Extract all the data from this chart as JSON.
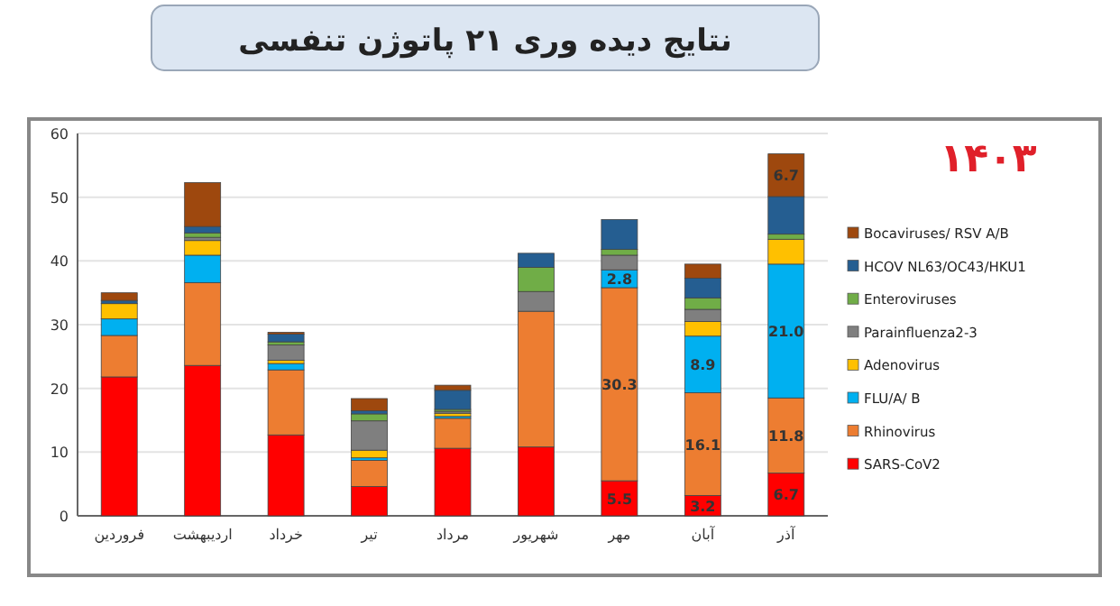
{
  "chart_data": {
    "type": "bar",
    "stacked": true,
    "title": "نتایج دیده وری ۲۱ پاتوژن تنفسی",
    "subtitle": "۱۴۰۳",
    "categories": [
      "فروردین",
      "اردیبهشت",
      "خرداد",
      "تیر",
      "مرداد",
      "شهریور",
      "مهر",
      "آبان",
      "آذر"
    ],
    "series": [
      {
        "name": "SARS-CoV2",
        "color": "#ff0000",
        "values": [
          21.8,
          23.6,
          12.7,
          4.6,
          10.6,
          10.8,
          5.5,
          3.2,
          6.7
        ],
        "value_labels": [
          null,
          null,
          null,
          null,
          null,
          null,
          "5.5",
          "3.2",
          "6.7"
        ]
      },
      {
        "name": "Rhinovirus",
        "color": "#ed7d31",
        "values": [
          6.5,
          13.0,
          10.2,
          4.1,
          4.7,
          21.3,
          30.3,
          16.1,
          11.8
        ],
        "value_labels": [
          null,
          null,
          null,
          null,
          null,
          null,
          "30.3",
          "16.1",
          "11.8"
        ]
      },
      {
        "name": "FLU/A/ B",
        "color": "#00b0f0",
        "values": [
          2.6,
          4.3,
          1.0,
          0.4,
          0.3,
          0,
          2.8,
          8.9,
          21.0
        ],
        "value_labels": [
          null,
          null,
          null,
          null,
          null,
          null,
          "2.8",
          "8.9",
          "21.0"
        ]
      },
      {
        "name": "Adenovirus",
        "color": "#ffc000",
        "values": [
          2.4,
          2.3,
          0.5,
          1.2,
          0.5,
          0,
          0,
          2.3,
          3.9
        ]
      },
      {
        "name": "Parainfluenza2-3",
        "color": "#7f7f7f",
        "values": [
          0,
          0.5,
          2.4,
          4.6,
          0.3,
          3.1,
          2.3,
          1.9,
          0
        ]
      },
      {
        "name": "Enteroviruses",
        "color": "#70ad47",
        "values": [
          0,
          0.7,
          0.5,
          1.1,
          0.3,
          3.8,
          0.9,
          1.8,
          0.8
        ]
      },
      {
        "name": "HCOV NL63/OC43/HKU1",
        "color": "#255e91",
        "values": [
          0.5,
          1.0,
          1.2,
          0.5,
          3.0,
          2.2,
          4.7,
          3.1,
          5.9
        ]
      },
      {
        "name": "Bocaviruses/ RSV A/B",
        "color": "#9e480e",
        "values": [
          1.2,
          6.9,
          0.3,
          1.9,
          0.8,
          0,
          0,
          2.2,
          6.7
        ],
        "value_labels": [
          null,
          null,
          null,
          null,
          null,
          null,
          null,
          null,
          "6.7"
        ]
      }
    ],
    "ylim": [
      0,
      60
    ],
    "yticks": [
      0,
      10,
      20,
      30,
      40,
      50,
      60
    ],
    "grid": "y",
    "legend": "right"
  }
}
